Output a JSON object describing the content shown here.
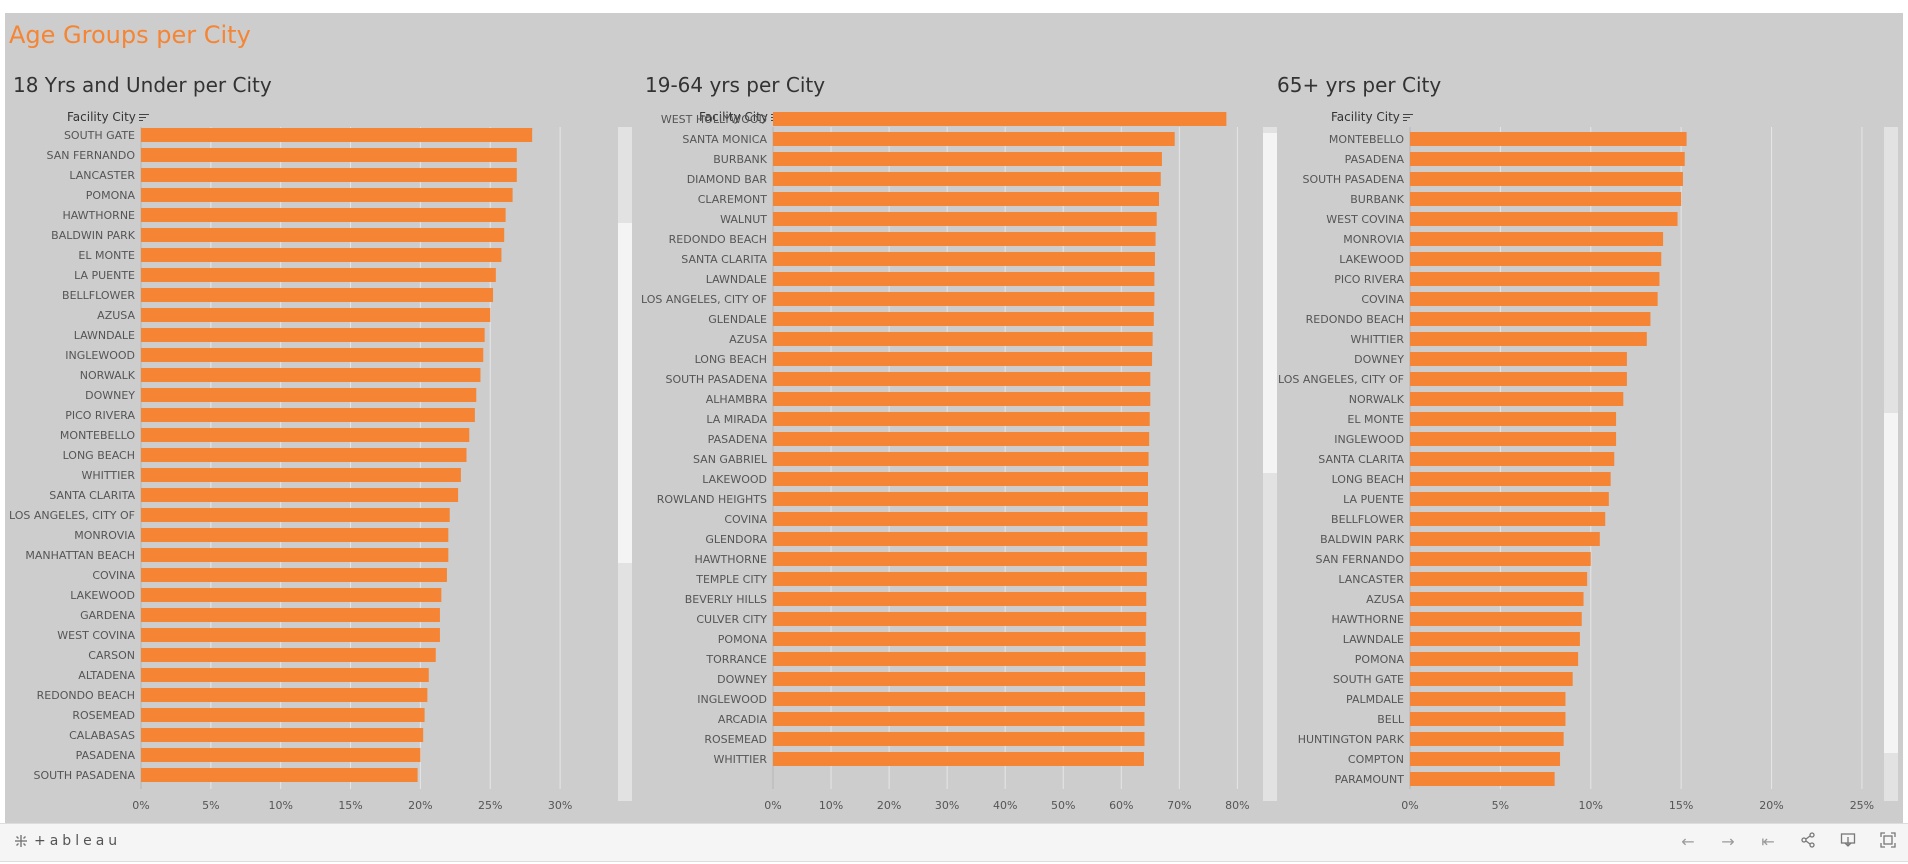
{
  "dashboard": {
    "title": "Age Groups per City"
  },
  "colors": {
    "bar": "#f58534",
    "background": "#cdcdcd",
    "grid": "#e6e6e6",
    "title": "#f58534"
  },
  "footer": {
    "logo_text": "+ableau",
    "buttons": [
      "undo-icon",
      "redo-icon",
      "revert-icon",
      "share-icon",
      "download-icon",
      "fullscreen-icon"
    ]
  },
  "chart_data": [
    {
      "type": "bar",
      "title": "18 Yrs and Under per City",
      "axis_title": "Facility City",
      "xlim": [
        0,
        33
      ],
      "ticks": [
        0,
        5,
        10,
        15,
        20,
        25,
        30
      ],
      "tick_labels": [
        "0%",
        "5%",
        "10%",
        "15%",
        "20%",
        "25%",
        "30%"
      ],
      "grid": true,
      "categories": [
        "SOUTH GATE",
        "SAN FERNANDO",
        "LANCASTER",
        "POMONA",
        "HAWTHORNE",
        "BALDWIN PARK",
        "EL MONTE",
        "LA PUENTE",
        "BELLFLOWER",
        "AZUSA",
        "LAWNDALE",
        "INGLEWOOD",
        "NORWALK",
        "DOWNEY",
        "PICO RIVERA",
        "MONTEBELLO",
        "LONG BEACH",
        "WHITTIER",
        "SANTA CLARITA",
        "LOS ANGELES, CITY OF",
        "MONROVIA",
        "MANHATTAN BEACH",
        "COVINA",
        "LAKEWOOD",
        "GARDENA",
        "WEST COVINA",
        "CARSON",
        "ALTADENA",
        "REDONDO BEACH",
        "ROSEMEAD",
        "CALABASAS",
        "PASADENA",
        "SOUTH PASADENA"
      ],
      "values": [
        28.0,
        26.9,
        26.9,
        26.6,
        26.1,
        26.0,
        25.8,
        25.4,
        25.2,
        25.0,
        24.6,
        24.5,
        24.3,
        24.0,
        23.9,
        23.5,
        23.3,
        22.9,
        22.7,
        22.1,
        22.0,
        22.0,
        21.9,
        21.5,
        21.4,
        21.4,
        21.1,
        20.6,
        20.5,
        20.3,
        20.2,
        20.0,
        19.8
      ]
    },
    {
      "type": "bar",
      "title": "19-64 yrs per City",
      "axis_title": "Facility City",
      "xlim": [
        0,
        82
      ],
      "ticks": [
        0,
        10,
        20,
        30,
        40,
        50,
        60,
        70,
        80
      ],
      "tick_labels": [
        "0%",
        "10%",
        "20%",
        "30%",
        "40%",
        "50%",
        "60%",
        "70%",
        "80%"
      ],
      "grid": true,
      "categories": [
        "WEST HOLLYWOOD",
        "SANTA MONICA",
        "BURBANK",
        "DIAMOND BAR",
        "CLAREMONT",
        "WALNUT",
        "REDONDO BEACH",
        "SANTA CLARITA",
        "LAWNDALE",
        "LOS ANGELES, CITY OF",
        "GLENDALE",
        "AZUSA",
        "LONG BEACH",
        "SOUTH PASADENA",
        "ALHAMBRA",
        "LA MIRADA",
        "PASADENA",
        "SAN GABRIEL",
        "LAKEWOOD",
        "ROWLAND HEIGHTS",
        "COVINA",
        "GLENDORA",
        "HAWTHORNE",
        "TEMPLE CITY",
        "BEVERLY HILLS",
        "CULVER CITY",
        "POMONA",
        "TORRANCE",
        "DOWNEY",
        "INGLEWOOD",
        "ARCADIA",
        "ROSEMEAD",
        "WHITTIER"
      ],
      "values": [
        78.1,
        69.2,
        67.0,
        66.8,
        66.5,
        66.1,
        65.9,
        65.8,
        65.7,
        65.7,
        65.6,
        65.4,
        65.3,
        65.0,
        65.0,
        64.9,
        64.8,
        64.7,
        64.6,
        64.6,
        64.5,
        64.5,
        64.4,
        64.4,
        64.3,
        64.3,
        64.2,
        64.2,
        64.1,
        64.1,
        64.0,
        64.0,
        63.9
      ]
    },
    {
      "type": "bar",
      "title": "65+ yrs per City",
      "axis_title": "Facility City",
      "xlim": [
        0,
        26
      ],
      "ticks": [
        0,
        5,
        10,
        15,
        20,
        25
      ],
      "tick_labels": [
        "0%",
        "5%",
        "10%",
        "15%",
        "20%",
        "25%"
      ],
      "grid": true,
      "categories": [
        "MONTEBELLO",
        "PASADENA",
        "SOUTH PASADENA",
        "BURBANK",
        "WEST COVINA",
        "MONROVIA",
        "LAKEWOOD",
        "PICO RIVERA",
        "COVINA",
        "REDONDO BEACH",
        "WHITTIER",
        "DOWNEY",
        "LOS ANGELES, CITY OF",
        "NORWALK",
        "EL MONTE",
        "INGLEWOOD",
        "SANTA CLARITA",
        "LONG BEACH",
        "LA PUENTE",
        "BELLFLOWER",
        "BALDWIN PARK",
        "SAN FERNANDO",
        "LANCASTER",
        "AZUSA",
        "HAWTHORNE",
        "LAWNDALE",
        "POMONA",
        "SOUTH GATE",
        "PALMDALE",
        "BELL",
        "HUNTINGTON PARK",
        "COMPTON",
        "PARAMOUNT"
      ],
      "values": [
        15.3,
        15.2,
        15.1,
        15.0,
        14.8,
        14.0,
        13.9,
        13.8,
        13.7,
        13.3,
        13.1,
        12.0,
        12.0,
        11.8,
        11.4,
        11.4,
        11.3,
        11.1,
        11.0,
        10.8,
        10.5,
        10.0,
        9.8,
        9.6,
        9.5,
        9.4,
        9.3,
        9.0,
        8.6,
        8.6,
        8.5,
        8.3,
        8.0
      ]
    }
  ]
}
